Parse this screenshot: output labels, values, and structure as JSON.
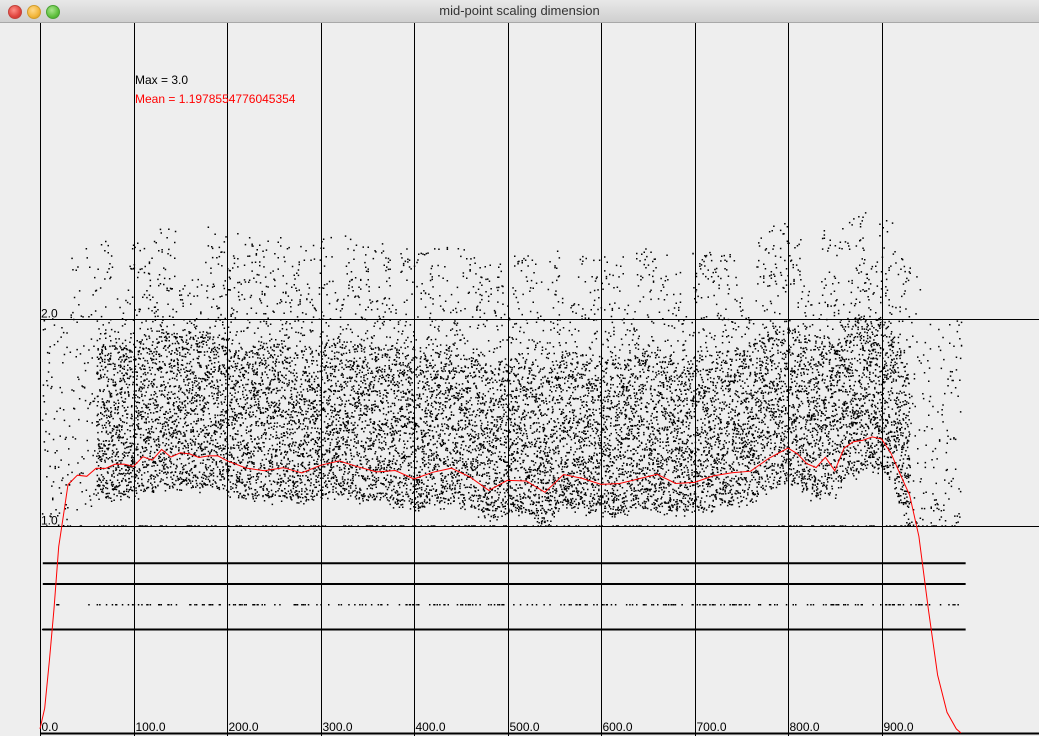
{
  "window": {
    "title": "mid-point scaling dimension"
  },
  "chart_data": {
    "type": "scatter",
    "title": "",
    "xlabel": "",
    "ylabel": "",
    "xlim": [
      0,
      1065
    ],
    "ylim": [
      0,
      3.0
    ],
    "x_ticks": [
      {
        "value": 0,
        "label": "0.0"
      },
      {
        "value": 100,
        "label": "100.0"
      },
      {
        "value": 200,
        "label": "200.0"
      },
      {
        "value": 300,
        "label": "300.0"
      },
      {
        "value": 400,
        "label": "400.0"
      },
      {
        "value": 500,
        "label": "500.0"
      },
      {
        "value": 600,
        "label": "600.0"
      },
      {
        "value": 700,
        "label": "700.0"
      },
      {
        "value": 800,
        "label": "800.0"
      },
      {
        "value": 900,
        "label": "900.0"
      }
    ],
    "y_ticks": [
      {
        "value": 1.0,
        "label": "1.0"
      },
      {
        "value": 2.0,
        "label": "2.0"
      }
    ],
    "grid": true,
    "annotations": {
      "max_label": "Max = 3.0",
      "mean_label": "Mean = 1.1978554776045354"
    },
    "scatter_color": "#000000",
    "mean_line_color": "#ff0000",
    "series": [
      {
        "kind": "mean-line",
        "x": [
          0,
          5,
          10,
          15,
          20,
          25,
          30,
          40,
          50,
          60,
          70,
          80,
          90,
          100,
          110,
          120,
          130,
          140,
          150,
          160,
          170,
          180,
          190,
          200,
          220,
          240,
          260,
          280,
          300,
          320,
          340,
          360,
          380,
          400,
          420,
          440,
          460,
          480,
          500,
          520,
          540,
          560,
          580,
          600,
          620,
          640,
          660,
          680,
          700,
          720,
          740,
          760,
          780,
          800,
          810,
          820,
          830,
          840,
          850,
          860,
          870,
          880,
          890,
          900,
          910,
          920,
          930,
          940,
          950,
          960,
          970,
          980,
          985
        ],
        "y": [
          0.02,
          0.12,
          0.35,
          0.6,
          0.9,
          1.05,
          1.2,
          1.25,
          1.24,
          1.27,
          1.28,
          1.29,
          1.3,
          1.28,
          1.33,
          1.31,
          1.36,
          1.33,
          1.35,
          1.34,
          1.33,
          1.34,
          1.33,
          1.31,
          1.28,
          1.27,
          1.29,
          1.25,
          1.29,
          1.31,
          1.28,
          1.27,
          1.26,
          1.22,
          1.25,
          1.27,
          1.24,
          1.17,
          1.22,
          1.21,
          1.16,
          1.25,
          1.23,
          1.21,
          1.2,
          1.23,
          1.24,
          1.21,
          1.22,
          1.24,
          1.25,
          1.27,
          1.33,
          1.37,
          1.35,
          1.31,
          1.28,
          1.33,
          1.27,
          1.38,
          1.4,
          1.42,
          1.43,
          1.42,
          1.36,
          1.25,
          1.15,
          0.95,
          0.6,
          0.28,
          0.1,
          0.02,
          0.0
        ]
      }
    ]
  }
}
